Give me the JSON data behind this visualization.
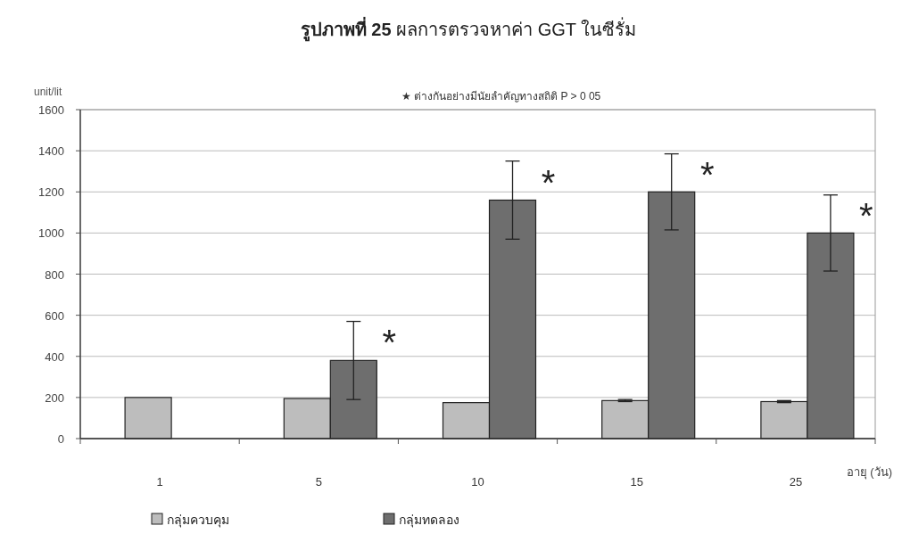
{
  "chart_data": {
    "type": "bar",
    "title": "**รูปภาพที่ 25** ผลการตรวจหาค่า GGT ในซีรั่ม",
    "ylabel": "unit/lit",
    "xlabel": "อายุ (วัน)",
    "categories": [
      "1",
      "5",
      "10",
      "15",
      "25"
    ],
    "series": [
      {
        "name": "กลุ่มควบคุม",
        "color": "#bdbdbd",
        "values": [
          200,
          195,
          175,
          185,
          180
        ],
        "errors": [
          null,
          null,
          null,
          5,
          5
        ]
      },
      {
        "name": "กลุ่มทดลอง",
        "color": "#6e6e6e",
        "values": [
          null,
          380,
          1160,
          1200,
          1000
        ],
        "errors": [
          null,
          190,
          190,
          185,
          185
        ]
      }
    ],
    "ylim": [
      0,
      1600
    ],
    "yticks": [
      0,
      200,
      400,
      600,
      800,
      1000,
      1200,
      1400,
      1600
    ],
    "grid": "y",
    "legend": "bottom",
    "annotations": [
      "★ ต่างกันอย่างมีนัยลำคัญทางสถิติ P > 0 05",
      "*",
      "*",
      "*",
      "*"
    ]
  }
}
